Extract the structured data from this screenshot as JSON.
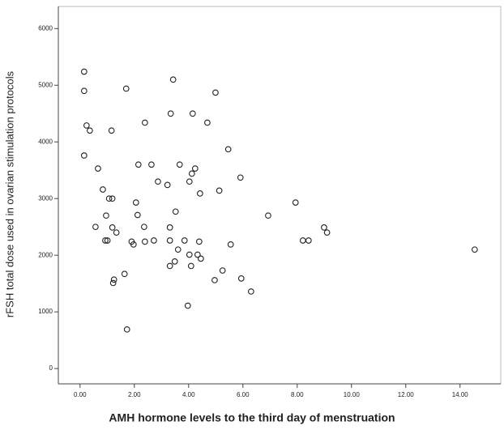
{
  "chart_data": {
    "type": "scatter",
    "xlabel": "AMH hormone levels to the third day of menstruation",
    "ylabel": "rFSH total dose used in ovarian stimulation protocols",
    "x": [
      0.15,
      0.15,
      0.24,
      0.36,
      0.15,
      0.66,
      0.84,
      0.96,
      1.07,
      1.19,
      1.16,
      0.57,
      0.93,
      1.01,
      1.19,
      1.34,
      1.25,
      1.22,
      1.64,
      1.73,
      1.7,
      1.97,
      1.9,
      2.06,
      2.12,
      2.15,
      2.36,
      2.39,
      2.39,
      2.63,
      2.72,
      2.87,
      3.22,
      3.31,
      3.31,
      3.34,
      3.31,
      3.43,
      3.49,
      3.52,
      3.61,
      3.67,
      3.85,
      3.97,
      4.03,
      4.09,
      4.03,
      4.12,
      4.15,
      4.24,
      4.33,
      4.39,
      4.42,
      4.45,
      4.69,
      4.99,
      4.96,
      5.13,
      5.25,
      5.46,
      5.55,
      5.91,
      5.94,
      6.3,
      6.93,
      7.94,
      8.21,
      8.42,
      8.99,
      9.1,
      14.54
    ],
    "y": [
      5240,
      4900,
      4290,
      4200,
      3760,
      3530,
      3160,
      2700,
      3000,
      3000,
      4200,
      2500,
      2260,
      2260,
      2490,
      2400,
      1570,
      1510,
      1670,
      690,
      4940,
      2190,
      2240,
      2930,
      2710,
      3600,
      2500,
      2240,
      4340,
      3600,
      2260,
      3300,
      3240,
      2260,
      2490,
      4500,
      1810,
      5100,
      1890,
      2770,
      2100,
      3600,
      2260,
      1110,
      3300,
      1810,
      2010,
      3440,
      4500,
      3530,
      2010,
      2240,
      3090,
      1940,
      4340,
      4870,
      1560,
      3140,
      1730,
      3870,
      2190,
      3370,
      1590,
      1360,
      2700,
      2930,
      2260,
      2260,
      2490,
      2400,
      2100
    ],
    "color": "#222222",
    "xlim": [
      -0.8,
      15.5
    ],
    "ylim": [
      -270,
      6390
    ],
    "xticks": [
      {
        "value": 0,
        "label": "0.00"
      },
      {
        "value": 2,
        "label": "2.00"
      },
      {
        "value": 4,
        "label": "4.00"
      },
      {
        "value": 6,
        "label": "6.00"
      },
      {
        "value": 8,
        "label": "8.00"
      },
      {
        "value": 10,
        "label": "10.00"
      },
      {
        "value": 12,
        "label": "12.00"
      },
      {
        "value": 14,
        "label": "14.00"
      }
    ],
    "yticks": [
      0,
      1000,
      2000,
      3000,
      4000,
      5000,
      6000
    ],
    "grid": false
  }
}
